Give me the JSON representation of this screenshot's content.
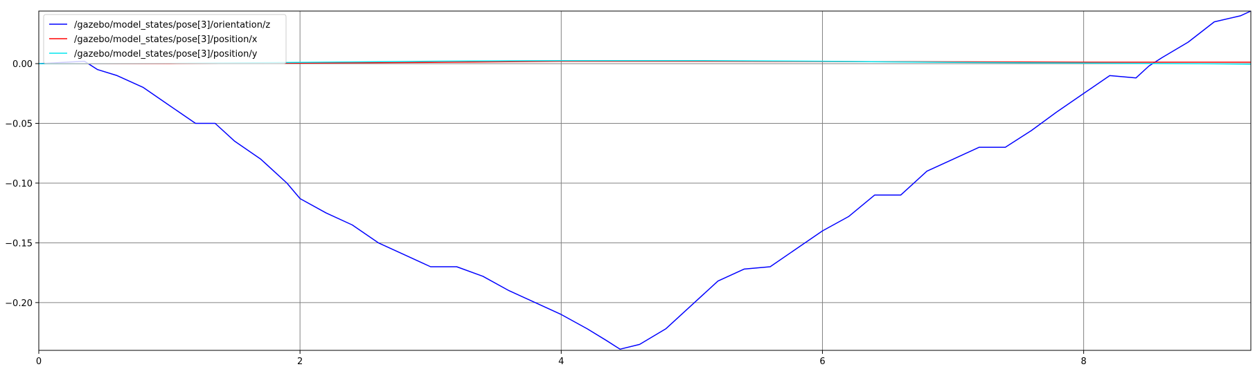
{
  "chart_data": {
    "type": "line",
    "title": "",
    "xlabel": "",
    "ylabel": "",
    "xlim": [
      0,
      9.28
    ],
    "ylim": [
      -0.24,
      0.044
    ],
    "grid": true,
    "legend_position": "top-left",
    "x_ticks": [
      {
        "value": 0,
        "label": "0"
      },
      {
        "value": 2,
        "label": "2"
      },
      {
        "value": 4,
        "label": "4"
      },
      {
        "value": 6,
        "label": "6"
      },
      {
        "value": 8,
        "label": "8"
      }
    ],
    "y_ticks": [
      {
        "value": 0.0,
        "label": "0.00"
      },
      {
        "value": -0.05,
        "label": "−0.05"
      },
      {
        "value": -0.1,
        "label": "−0.10"
      },
      {
        "value": -0.15,
        "label": "−0.15"
      },
      {
        "value": -0.2,
        "label": "−0.20"
      }
    ],
    "series": [
      {
        "name": "/gazebo/model_states/pose[3]/orientation/z",
        "color": "#0000ff",
        "x": [
          0,
          0.35,
          0.45,
          0.6,
          0.8,
          1.0,
          1.2,
          1.35,
          1.5,
          1.7,
          1.9,
          2.0,
          2.2,
          2.4,
          2.6,
          2.8,
          3.0,
          3.2,
          3.4,
          3.6,
          3.8,
          4.0,
          4.2,
          4.35,
          4.45,
          4.6,
          4.8,
          5.0,
          5.2,
          5.4,
          5.6,
          5.8,
          6.0,
          6.2,
          6.4,
          6.6,
          6.8,
          7.0,
          7.2,
          7.4,
          7.6,
          7.8,
          8.0,
          8.2,
          8.4,
          8.5,
          8.6,
          8.8,
          9.0,
          9.2,
          9.28
        ],
        "y": [
          0.0,
          0.002,
          -0.005,
          -0.01,
          -0.02,
          -0.035,
          -0.05,
          -0.05,
          -0.065,
          -0.08,
          -0.1,
          -0.113,
          -0.125,
          -0.135,
          -0.15,
          -0.16,
          -0.17,
          -0.17,
          -0.178,
          -0.19,
          -0.2,
          -0.21,
          -0.222,
          -0.232,
          -0.239,
          -0.235,
          -0.222,
          -0.202,
          -0.182,
          -0.172,
          -0.17,
          -0.155,
          -0.14,
          -0.128,
          -0.11,
          -0.11,
          -0.09,
          -0.08,
          -0.07,
          -0.07,
          -0.056,
          -0.04,
          -0.025,
          -0.01,
          -0.012,
          -0.002,
          0.005,
          0.018,
          0.035,
          0.04,
          0.044
        ]
      },
      {
        "name": "/gazebo/model_states/pose[3]/position/x",
        "color": "#ff0000",
        "x": [
          0,
          1,
          2,
          3,
          4,
          5,
          6,
          7,
          8,
          9,
          9.28
        ],
        "y": [
          0.0,
          0.0,
          0.0005,
          0.001,
          0.002,
          0.002,
          0.0018,
          0.0015,
          0.0012,
          0.0012,
          0.0012
        ]
      },
      {
        "name": "/gazebo/model_states/pose[3]/position/y",
        "color": "#00e5ee",
        "x": [
          0,
          1,
          2,
          3,
          4,
          5,
          6,
          7,
          8,
          9,
          9.28
        ],
        "y": [
          0.0,
          0.0002,
          0.001,
          0.002,
          0.0025,
          0.0025,
          0.002,
          0.001,
          0.0005,
          -0.0002,
          -0.0005
        ]
      }
    ]
  }
}
